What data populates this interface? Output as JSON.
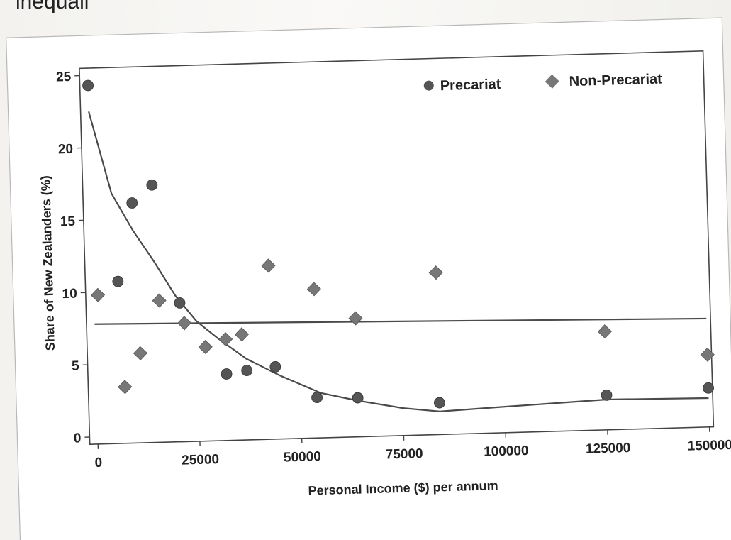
{
  "page": {
    "top_text_fragment": "inequali"
  },
  "chart_data": {
    "type": "scatter",
    "xlabel": "Personal Income ($) per annum",
    "ylabel": "Share of New Zealanders (%)",
    "xlim": [
      -2000,
      151000
    ],
    "ylim": [
      -0.5,
      25.5
    ],
    "x_ticks": [
      0,
      25000,
      50000,
      75000,
      100000,
      125000,
      150000
    ],
    "x_tick_labels": [
      "0",
      "25000",
      "50000",
      "75000",
      "100000",
      "125000",
      "150000"
    ],
    "y_ticks": [
      0,
      5,
      10,
      15,
      20,
      25
    ],
    "y_tick_labels": [
      "0",
      "5",
      "10",
      "15",
      "20",
      "25"
    ],
    "grid": false,
    "legend_position": "top-right",
    "series": [
      {
        "name": "Precariat",
        "marker": "circle",
        "color": "#555555",
        "points": [
          {
            "x": 0,
            "y": 24.3
          },
          {
            "x": 6000,
            "y": 10.7
          },
          {
            "x": 10000,
            "y": 16.1
          },
          {
            "x": 15000,
            "y": 17.3
          },
          {
            "x": 21000,
            "y": 9.1
          },
          {
            "x": 32000,
            "y": 4.1
          },
          {
            "x": 37000,
            "y": 4.3
          },
          {
            "x": 44000,
            "y": 4.5
          },
          {
            "x": 54000,
            "y": 2.3
          },
          {
            "x": 64000,
            "y": 2.2
          },
          {
            "x": 84000,
            "y": 1.7
          },
          {
            "x": 125000,
            "y": 1.9
          },
          {
            "x": 150000,
            "y": 2.2
          }
        ],
        "trend": [
          {
            "x": 0,
            "y": 22.5
          },
          {
            "x": 5000,
            "y": 16.8
          },
          {
            "x": 10000,
            "y": 14.2
          },
          {
            "x": 15000,
            "y": 12.0
          },
          {
            "x": 20000,
            "y": 9.6
          },
          {
            "x": 25000,
            "y": 7.8
          },
          {
            "x": 30000,
            "y": 6.6
          },
          {
            "x": 37000,
            "y": 5.1
          },
          {
            "x": 45000,
            "y": 3.9
          },
          {
            "x": 55000,
            "y": 2.6
          },
          {
            "x": 64000,
            "y": 2.0
          },
          {
            "x": 75000,
            "y": 1.4
          },
          {
            "x": 84000,
            "y": 1.1
          },
          {
            "x": 100000,
            "y": 1.3
          },
          {
            "x": 125000,
            "y": 1.6
          },
          {
            "x": 150000,
            "y": 1.5
          }
        ]
      },
      {
        "name": "Non-Precariat",
        "marker": "diamond",
        "color": "#777777",
        "points": [
          {
            "x": 1000,
            "y": 9.8
          },
          {
            "x": 7000,
            "y": 3.4
          },
          {
            "x": 11000,
            "y": 5.7
          },
          {
            "x": 16000,
            "y": 9.3
          },
          {
            "x": 22000,
            "y": 7.7
          },
          {
            "x": 27000,
            "y": 6.0
          },
          {
            "x": 32000,
            "y": 6.5
          },
          {
            "x": 36000,
            "y": 6.8
          },
          {
            "x": 43000,
            "y": 11.5
          },
          {
            "x": 54000,
            "y": 9.8
          },
          {
            "x": 64000,
            "y": 7.7
          },
          {
            "x": 84000,
            "y": 10.7
          },
          {
            "x": 125000,
            "y": 6.3
          },
          {
            "x": 150000,
            "y": 4.5
          }
        ],
        "trend": [
          {
            "x": 0,
            "y": 7.8
          },
          {
            "x": 150000,
            "y": 7.0
          }
        ]
      }
    ]
  }
}
